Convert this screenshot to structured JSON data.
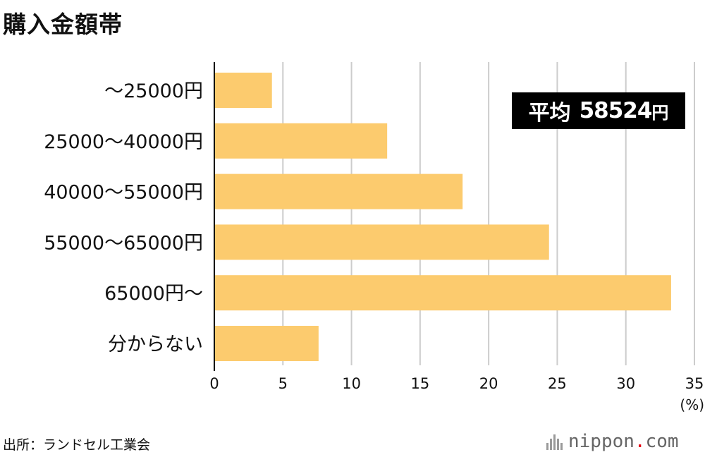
{
  "title": "購入金額帯",
  "average": {
    "label": "平均",
    "value": "58524",
    "unit": "円"
  },
  "source": "出所：ランドセル工業会",
  "logo": {
    "name": "nippon",
    "dot": ".",
    "tld": "com"
  },
  "chart_data": {
    "type": "bar",
    "orientation": "horizontal",
    "title": "",
    "categories": [
      "〜25000円",
      "25000〜40000円",
      "40000〜55000円",
      "55000〜65000円",
      "65000円〜",
      "分からない"
    ],
    "values": [
      4.2,
      12.6,
      18.1,
      24.4,
      33.3,
      7.6
    ],
    "xlim": [
      0,
      35
    ],
    "xticks": [
      "0",
      "5",
      "10",
      "15",
      "20",
      "25",
      "30",
      "35"
    ],
    "xunit": "(%)",
    "grid": true,
    "bar_color": "#FCCB6E",
    "grid_color": "#CCCCCC",
    "axis_color": "#000000"
  }
}
